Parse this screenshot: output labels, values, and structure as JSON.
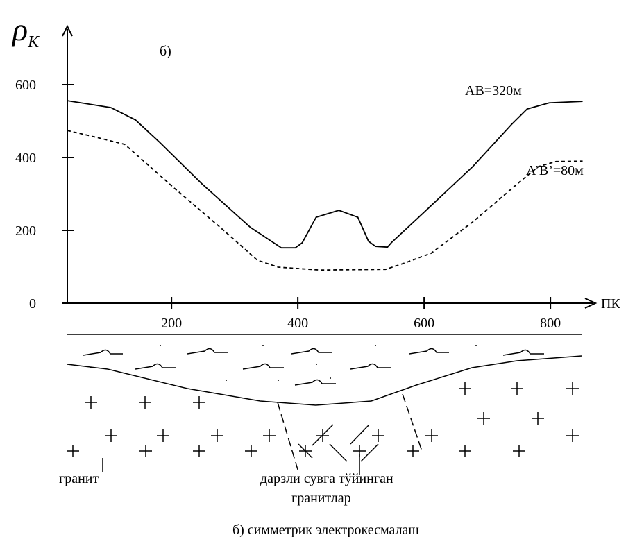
{
  "chart_data": {
    "type": "line",
    "y_label": {
      "symbol": "ρ",
      "subscript": "K"
    },
    "x_label": "ПК",
    "annotation": "б)",
    "xlim": [
      35,
      868
    ],
    "xticks": [
      200,
      400,
      600,
      800
    ],
    "ylim": [
      0,
      600
    ],
    "yticks": [
      0,
      200,
      400,
      600
    ],
    "grid": false,
    "series": [
      {
        "name": "AB=320м",
        "color": "#000000",
        "dash": "solid",
        "x": [
          35,
          104,
          143,
          181,
          248,
          325,
          374,
          396,
          407,
          429,
          465,
          495,
          512,
          523,
          542,
          548,
          589,
          677,
          738,
          763,
          798,
          851
        ],
        "values": [
          556,
          537,
          503,
          442,
          328,
          208,
          152,
          152,
          166,
          236,
          255,
          236,
          170,
          156,
          154,
          166,
          232,
          375,
          490,
          533,
          550,
          554
        ]
      },
      {
        "name": "A’B’=80м",
        "color": "#000000",
        "dash": "dashed",
        "x": [
          35,
          82,
          126,
          203,
          280,
          336,
          369,
          435,
          539,
          567,
          611,
          677,
          754,
          781,
          809,
          851
        ],
        "values": [
          474,
          455,
          436,
          318,
          204,
          118,
          99,
          91,
          93,
          109,
          137,
          223,
          337,
          375,
          389,
          390
        ]
      }
    ]
  },
  "section": {
    "granite": "гранит",
    "fractured_1": "дарзли сувга тўйинган",
    "fractured_2": "гранитлар"
  },
  "caption": "б) симметрик электрокесмалаш"
}
